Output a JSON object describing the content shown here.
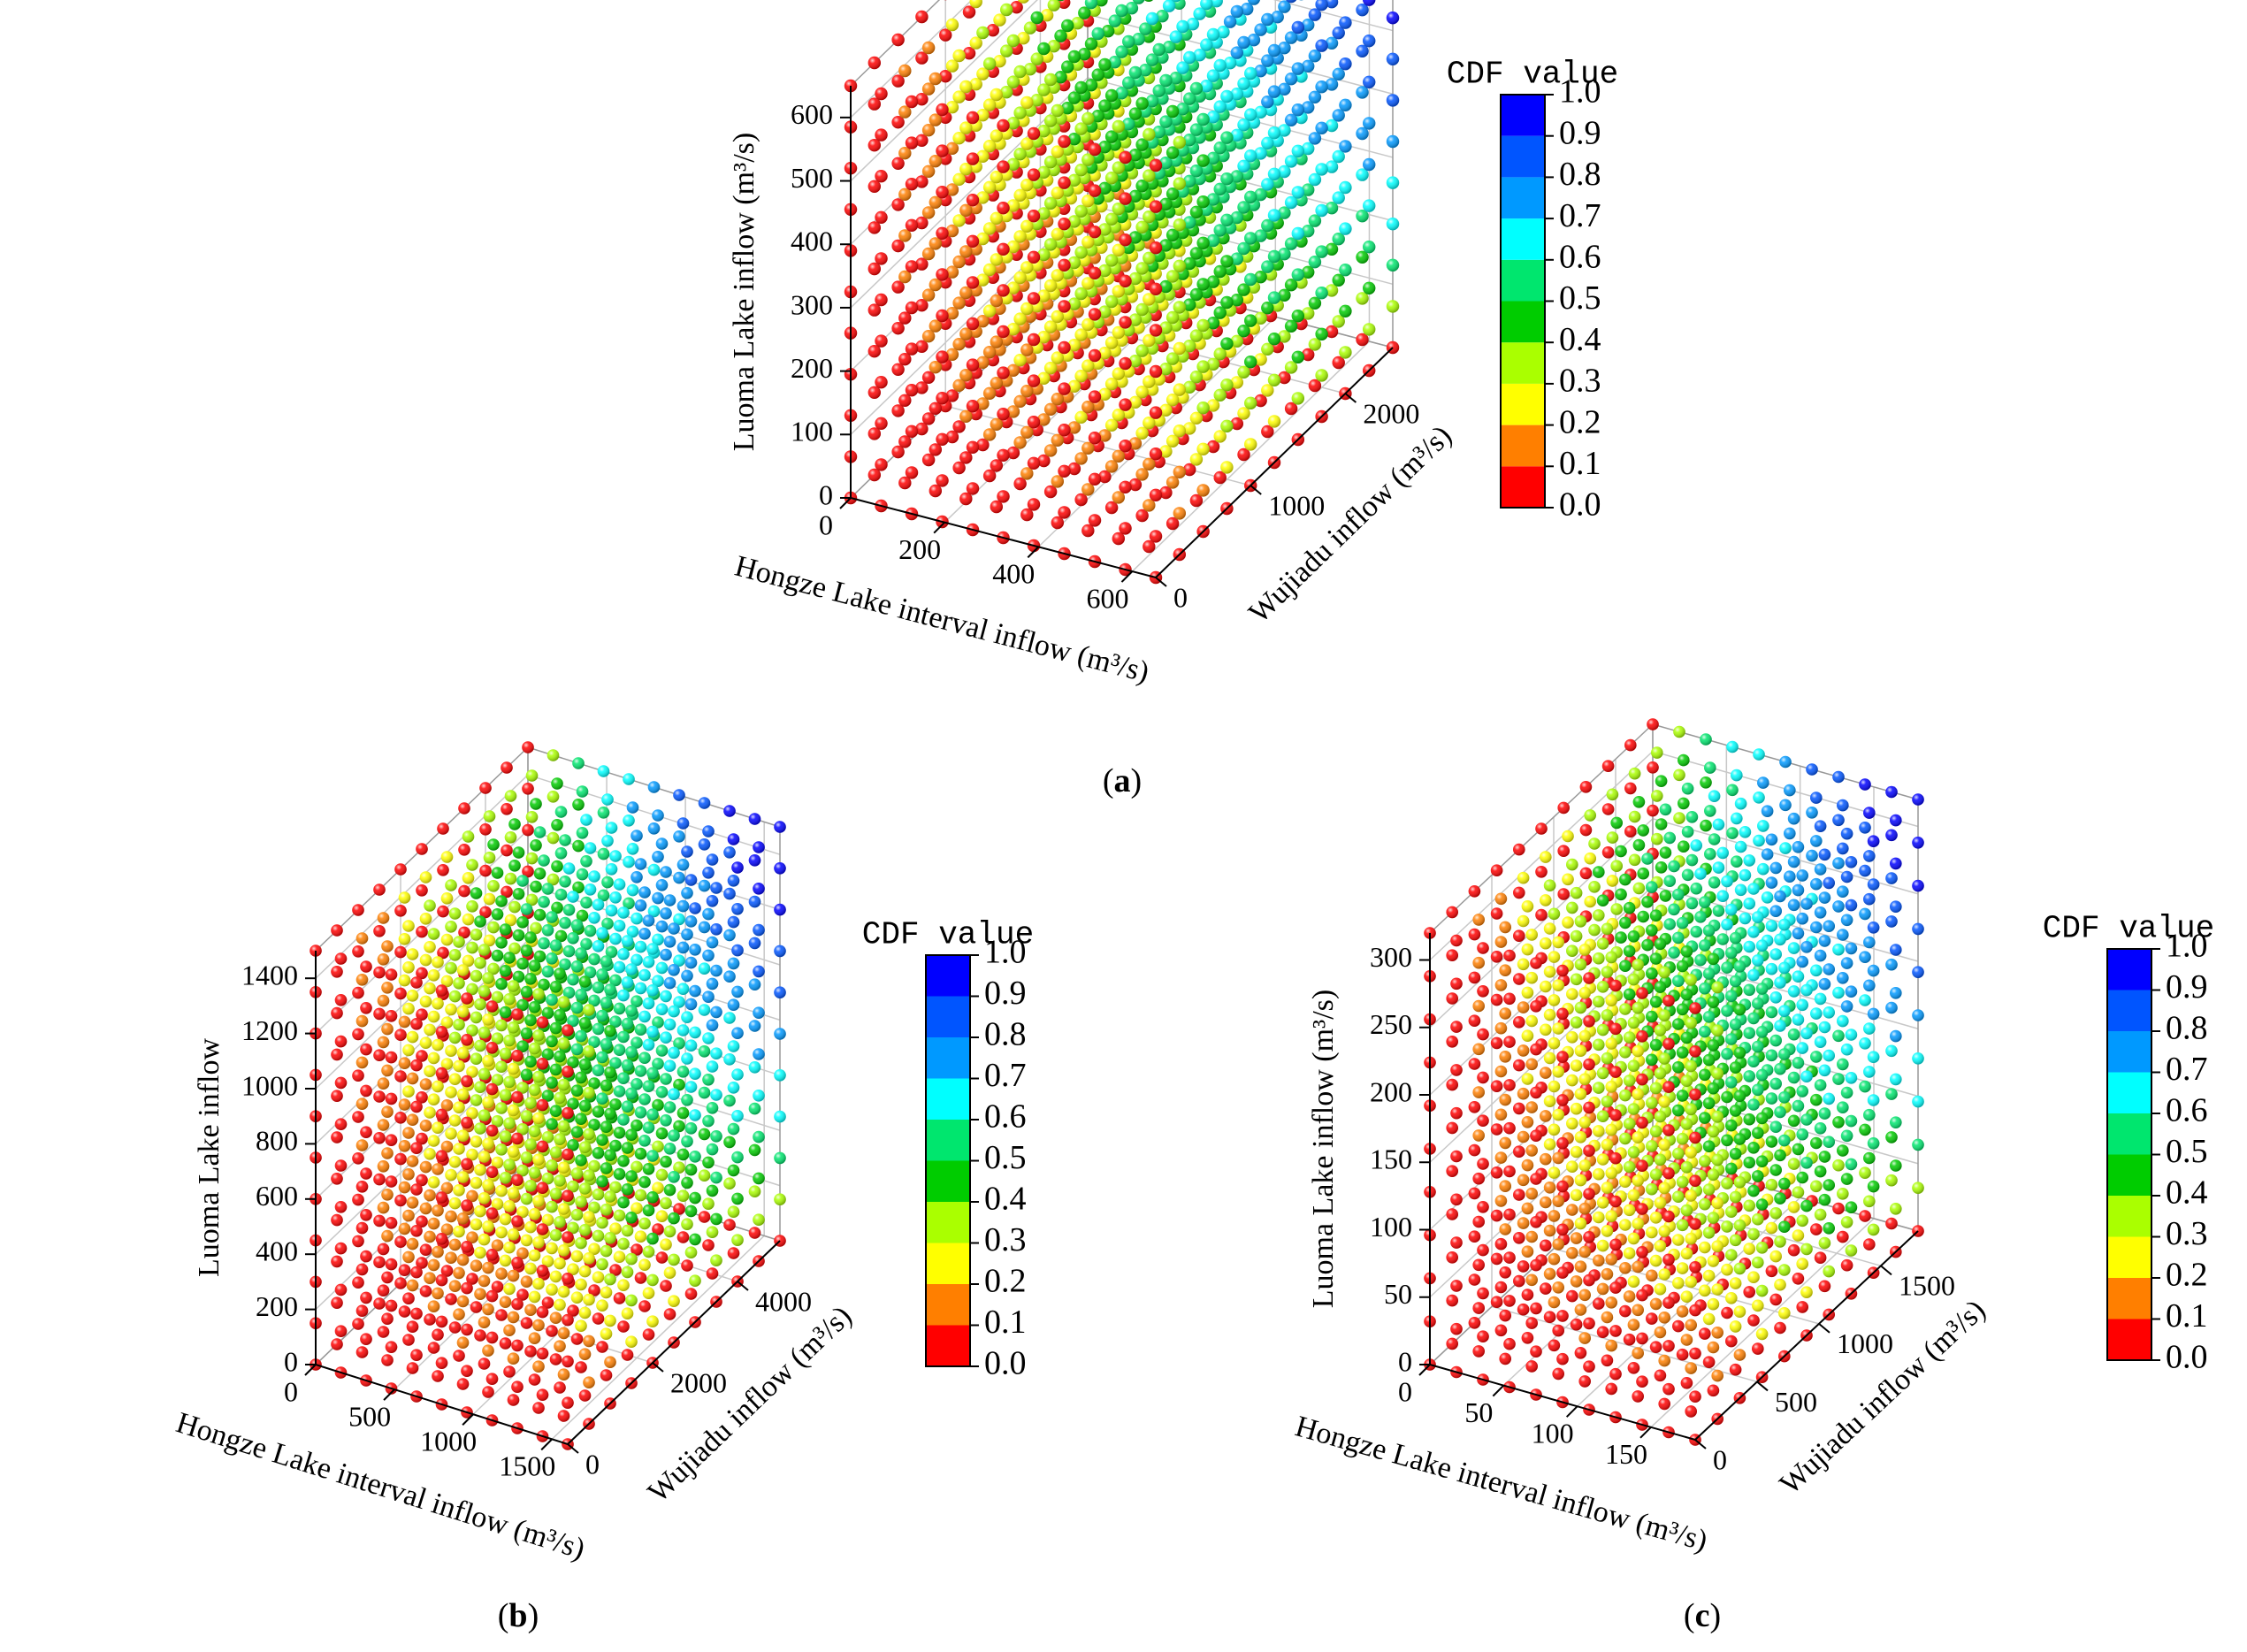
{
  "chart_data": [
    {
      "type": "scatter",
      "panel_label": "(a)",
      "panel_letter": "a",
      "title": "",
      "xlabel": "Hongze Lake interval inflow (m³/s)",
      "ylabel": "Wujiadu inflow (m³/s)",
      "zlabel": "Luoma Lake inflow (m³/s)",
      "xlim": [
        0,
        650
      ],
      "ylim": [
        0,
        2500
      ],
      "zlim": [
        0,
        650
      ],
      "x_ticks": [
        "0",
        "200",
        "400",
        "600"
      ],
      "y_ticks": [
        "0",
        "1000",
        "2000"
      ],
      "z_ticks": [
        "0",
        "100",
        "200",
        "300",
        "400",
        "500",
        "600"
      ],
      "x_tick_values": [
        0,
        200,
        400,
        600
      ],
      "y_tick_values": [
        0,
        1000,
        2000
      ],
      "z_tick_values": [
        0,
        100,
        200,
        300,
        400,
        500,
        600
      ],
      "grid_points_per_axis": 11,
      "colorbar": {
        "title": "CDF value",
        "ticks": [
          "1.0",
          "0.9",
          "0.8",
          "0.7",
          "0.6",
          "0.5",
          "0.4",
          "0.3",
          "0.2",
          "0.1",
          "0.0"
        ]
      }
    },
    {
      "type": "scatter",
      "panel_label": "(b)",
      "panel_letter": "b",
      "title": "",
      "xlabel": "Hongze Lake interval inflow (m³/s)",
      "ylabel": "Wujiadu inflow (m³/s)",
      "zlabel": "Luoma Lake inflow",
      "xlim": [
        0,
        1600
      ],
      "ylim": [
        0,
        5000
      ],
      "zlim": [
        0,
        1500
      ],
      "x_ticks": [
        "0",
        "500",
        "1000",
        "1500"
      ],
      "y_ticks": [
        "0",
        "2000",
        "4000"
      ],
      "z_ticks": [
        "0",
        "200",
        "400",
        "600",
        "800",
        "1000",
        "1200",
        "1400"
      ],
      "x_tick_values": [
        0,
        500,
        1000,
        1500
      ],
      "y_tick_values": [
        0,
        2000,
        4000
      ],
      "z_tick_values": [
        0,
        200,
        400,
        600,
        800,
        1000,
        1200,
        1400
      ],
      "grid_points_per_axis": 11,
      "colorbar": {
        "title": "CDF value",
        "ticks": [
          "1.0",
          "0.9",
          "0.8",
          "0.7",
          "0.6",
          "0.5",
          "0.4",
          "0.3",
          "0.2",
          "0.1",
          "0.0"
        ]
      }
    },
    {
      "type": "scatter",
      "panel_label": "(c)",
      "panel_letter": "c",
      "title": "",
      "xlabel": "Hongze Lake interval inflow (m³/s)",
      "ylabel": "Wujiadu inflow (m³/s)",
      "zlabel": "Luoma Lake inflow (m³/s)",
      "xlim": [
        0,
        180
      ],
      "ylim": [
        0,
        1800
      ],
      "zlim": [
        0,
        320
      ],
      "x_ticks": [
        "0",
        "50",
        "100",
        "150"
      ],
      "y_ticks": [
        "0",
        "500",
        "1000",
        "1500"
      ],
      "z_ticks": [
        "0",
        "50",
        "100",
        "150",
        "200",
        "250",
        "300"
      ],
      "x_tick_values": [
        0,
        50,
        100,
        150
      ],
      "y_tick_values": [
        0,
        500,
        1000,
        1500
      ],
      "z_tick_values": [
        0,
        50,
        100,
        150,
        200,
        250,
        300
      ],
      "grid_points_per_axis": 11,
      "colorbar": {
        "title": "CDF value",
        "ticks": [
          "1.0",
          "0.9",
          "0.8",
          "0.7",
          "0.6",
          "0.5",
          "0.4",
          "0.3",
          "0.2",
          "0.1",
          "0.0"
        ]
      }
    }
  ],
  "colors": {
    "cdf_scale": [
      "#ff0000",
      "#ff7f00",
      "#ffff00",
      "#aaff00",
      "#00cc00",
      "#00e66e",
      "#00ffff",
      "#0099ff",
      "#0055ff",
      "#0000ff"
    ],
    "axis": "#000000",
    "grid": "#c8c8c8"
  }
}
